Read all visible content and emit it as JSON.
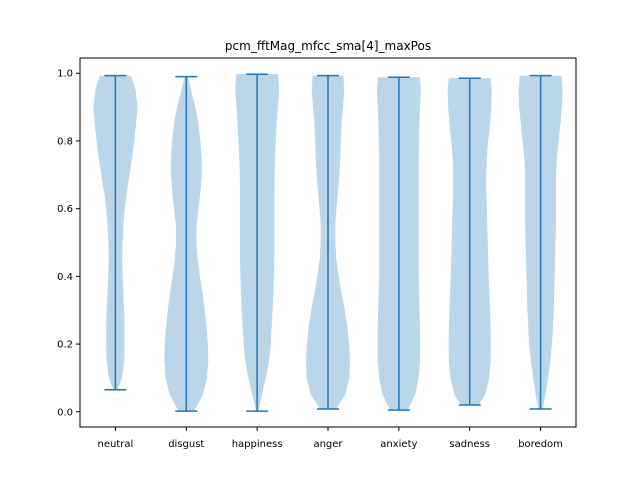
{
  "chart_data": {
    "type": "violin",
    "title": "pcm_fftMag_mfcc_sma[4]_maxPos",
    "xlabel": "",
    "ylabel": "",
    "categories": [
      "neutral",
      "disgust",
      "happiness",
      "anger",
      "anxiety",
      "sadness",
      "boredom"
    ],
    "ylim": [
      -0.045,
      1.045
    ],
    "yticks": [
      0.0,
      0.2,
      0.4,
      0.6,
      0.8,
      1.0
    ],
    "ytick_labels": [
      "0.0",
      "0.2",
      "0.4",
      "0.6",
      "0.8",
      "1.0"
    ],
    "grid": false,
    "colors": {
      "body": "#1f77b4",
      "body_alpha": 0.3,
      "lines": "#1f77b4"
    },
    "series": [
      {
        "category": "neutral",
        "min": 0.065,
        "max": 0.993,
        "density": [
          [
            0.065,
            0.1
          ],
          [
            0.1,
            0.3
          ],
          [
            0.15,
            0.4
          ],
          [
            0.2,
            0.42
          ],
          [
            0.25,
            0.42
          ],
          [
            0.3,
            0.4
          ],
          [
            0.35,
            0.36
          ],
          [
            0.4,
            0.33
          ],
          [
            0.45,
            0.31
          ],
          [
            0.5,
            0.32
          ],
          [
            0.55,
            0.36
          ],
          [
            0.6,
            0.42
          ],
          [
            0.65,
            0.52
          ],
          [
            0.7,
            0.64
          ],
          [
            0.75,
            0.76
          ],
          [
            0.8,
            0.86
          ],
          [
            0.85,
            0.94
          ],
          [
            0.9,
            1.0
          ],
          [
            0.95,
            0.92
          ],
          [
            0.993,
            0.7
          ]
        ]
      },
      {
        "category": "disgust",
        "min": 0.002,
        "max": 0.99,
        "density": [
          [
            0.002,
            0.35
          ],
          [
            0.05,
            0.75
          ],
          [
            0.1,
            0.94
          ],
          [
            0.15,
            1.0
          ],
          [
            0.2,
            0.98
          ],
          [
            0.25,
            0.92
          ],
          [
            0.3,
            0.84
          ],
          [
            0.35,
            0.74
          ],
          [
            0.4,
            0.62
          ],
          [
            0.45,
            0.52
          ],
          [
            0.5,
            0.46
          ],
          [
            0.55,
            0.47
          ],
          [
            0.6,
            0.55
          ],
          [
            0.65,
            0.64
          ],
          [
            0.7,
            0.7
          ],
          [
            0.75,
            0.7
          ],
          [
            0.8,
            0.64
          ],
          [
            0.85,
            0.56
          ],
          [
            0.9,
            0.42
          ],
          [
            0.95,
            0.22
          ],
          [
            0.99,
            0.08
          ]
        ]
      },
      {
        "category": "happiness",
        "min": 0.002,
        "max": 0.997,
        "density": [
          [
            0.002,
            0.05
          ],
          [
            0.05,
            0.22
          ],
          [
            0.1,
            0.4
          ],
          [
            0.15,
            0.54
          ],
          [
            0.2,
            0.62
          ],
          [
            0.25,
            0.66
          ],
          [
            0.3,
            0.7
          ],
          [
            0.35,
            0.74
          ],
          [
            0.4,
            0.76
          ],
          [
            0.45,
            0.78
          ],
          [
            0.5,
            0.78
          ],
          [
            0.55,
            0.78
          ],
          [
            0.6,
            0.78
          ],
          [
            0.65,
            0.78
          ],
          [
            0.7,
            0.79
          ],
          [
            0.75,
            0.81
          ],
          [
            0.8,
            0.85
          ],
          [
            0.85,
            0.89
          ],
          [
            0.9,
            0.94
          ],
          [
            0.95,
            1.0
          ],
          [
            0.997,
            0.95
          ]
        ]
      },
      {
        "category": "anger",
        "min": 0.008,
        "max": 0.993,
        "density": [
          [
            0.008,
            0.35
          ],
          [
            0.05,
            0.78
          ],
          [
            0.1,
            0.97
          ],
          [
            0.15,
            1.0
          ],
          [
            0.2,
            0.96
          ],
          [
            0.25,
            0.88
          ],
          [
            0.3,
            0.76
          ],
          [
            0.35,
            0.62
          ],
          [
            0.4,
            0.48
          ],
          [
            0.45,
            0.38
          ],
          [
            0.5,
            0.33
          ],
          [
            0.55,
            0.33
          ],
          [
            0.6,
            0.38
          ],
          [
            0.65,
            0.45
          ],
          [
            0.7,
            0.52
          ],
          [
            0.75,
            0.56
          ],
          [
            0.8,
            0.58
          ],
          [
            0.85,
            0.62
          ],
          [
            0.9,
            0.68
          ],
          [
            0.95,
            0.74
          ],
          [
            0.993,
            0.7
          ]
        ]
      },
      {
        "category": "anxiety",
        "min": 0.005,
        "max": 0.988,
        "density": [
          [
            0.005,
            0.4
          ],
          [
            0.05,
            0.74
          ],
          [
            0.1,
            0.9
          ],
          [
            0.15,
            0.96
          ],
          [
            0.2,
            0.97
          ],
          [
            0.25,
            0.96
          ],
          [
            0.3,
            0.94
          ],
          [
            0.35,
            0.92
          ],
          [
            0.4,
            0.9
          ],
          [
            0.45,
            0.9
          ],
          [
            0.5,
            0.9
          ],
          [
            0.55,
            0.9
          ],
          [
            0.6,
            0.9
          ],
          [
            0.65,
            0.9
          ],
          [
            0.7,
            0.9
          ],
          [
            0.75,
            0.9
          ],
          [
            0.8,
            0.91
          ],
          [
            0.85,
            0.93
          ],
          [
            0.9,
            0.96
          ],
          [
            0.95,
            1.0
          ],
          [
            0.988,
            0.95
          ]
        ]
      },
      {
        "category": "sadness",
        "min": 0.02,
        "max": 0.985,
        "density": [
          [
            0.02,
            0.4
          ],
          [
            0.05,
            0.7
          ],
          [
            0.1,
            0.88
          ],
          [
            0.15,
            0.95
          ],
          [
            0.2,
            0.96
          ],
          [
            0.25,
            0.95
          ],
          [
            0.3,
            0.92
          ],
          [
            0.35,
            0.89
          ],
          [
            0.4,
            0.86
          ],
          [
            0.45,
            0.84
          ],
          [
            0.5,
            0.82
          ],
          [
            0.55,
            0.8
          ],
          [
            0.6,
            0.78
          ],
          [
            0.65,
            0.75
          ],
          [
            0.7,
            0.75
          ],
          [
            0.75,
            0.78
          ],
          [
            0.8,
            0.84
          ],
          [
            0.85,
            0.92
          ],
          [
            0.9,
            0.98
          ],
          [
            0.95,
            1.0
          ],
          [
            0.985,
            0.95
          ]
        ]
      },
      {
        "category": "boredom",
        "min": 0.008,
        "max": 0.993,
        "density": [
          [
            0.008,
            0.1
          ],
          [
            0.05,
            0.22
          ],
          [
            0.1,
            0.34
          ],
          [
            0.15,
            0.44
          ],
          [
            0.2,
            0.52
          ],
          [
            0.25,
            0.56
          ],
          [
            0.3,
            0.6
          ],
          [
            0.35,
            0.62
          ],
          [
            0.4,
            0.64
          ],
          [
            0.45,
            0.66
          ],
          [
            0.5,
            0.68
          ],
          [
            0.55,
            0.7
          ],
          [
            0.6,
            0.7
          ],
          [
            0.65,
            0.7
          ],
          [
            0.7,
            0.7
          ],
          [
            0.75,
            0.74
          ],
          [
            0.8,
            0.82
          ],
          [
            0.85,
            0.9
          ],
          [
            0.9,
            0.97
          ],
          [
            0.95,
            1.0
          ],
          [
            0.993,
            0.95
          ]
        ]
      }
    ]
  }
}
